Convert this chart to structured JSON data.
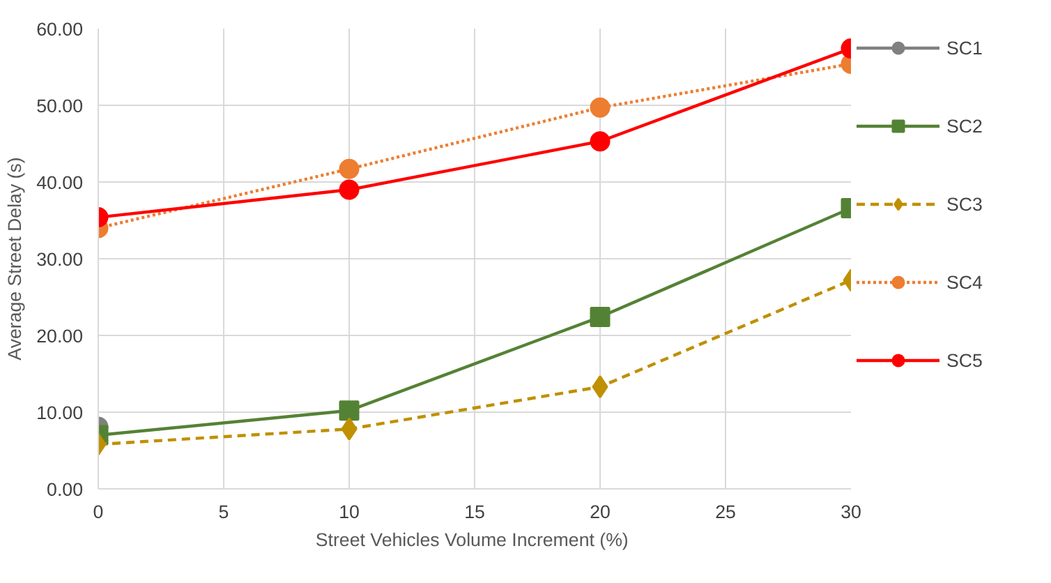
{
  "chart_data": {
    "type": "line",
    "xlabel": "Street Vehicles  Volume Increment (%)",
    "ylabel": "Average Street Delay (s)",
    "x": [
      0,
      10,
      20,
      30
    ],
    "xlim": [
      0,
      30
    ],
    "xticks": [
      0,
      5,
      10,
      15,
      20,
      25,
      30
    ],
    "ylim": [
      0,
      60
    ],
    "yticks": [
      {
        "value": 0,
        "label": "0.00"
      },
      {
        "value": 10,
        "label": "10.00"
      },
      {
        "value": 20,
        "label": "20.00"
      },
      {
        "value": 30,
        "label": "30.00"
      },
      {
        "value": 40,
        "label": "40.00"
      },
      {
        "value": 50,
        "label": "50.00"
      },
      {
        "value": 60,
        "label": "60.00"
      }
    ],
    "grid": true,
    "legend": "right",
    "series": [
      {
        "name": "SC1",
        "color": "#808080",
        "values": [
          8.1,
          null,
          null,
          null
        ],
        "marker": "circle",
        "line_style": "solid"
      },
      {
        "name": "SC2",
        "color": "#548235",
        "values": [
          7.0,
          10.2,
          22.4,
          36.6
        ],
        "marker": "square",
        "line_style": "solid"
      },
      {
        "name": "SC3",
        "color": "#bf9000",
        "values": [
          5.8,
          7.8,
          13.3,
          27.2
        ],
        "marker": "diamond",
        "line_style": "dashed"
      },
      {
        "name": "SC4",
        "color": "#ed7d31",
        "values": [
          34.0,
          41.7,
          49.7,
          55.4
        ],
        "marker": "circle",
        "line_style": "dotted"
      },
      {
        "name": "SC5",
        "color": "#ff0000",
        "values": [
          35.4,
          39.0,
          45.3,
          57.4
        ],
        "marker": "circle",
        "line_style": "solid"
      }
    ]
  }
}
